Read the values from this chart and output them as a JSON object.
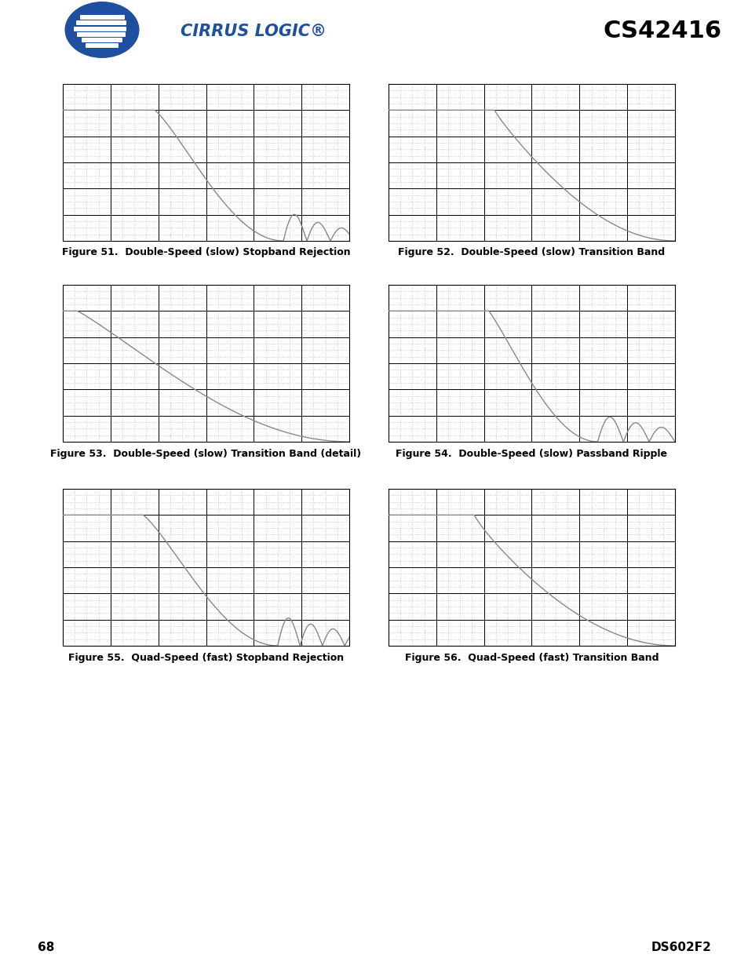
{
  "page_bg": "#ffffff",
  "header_bar_color": "#6e6e6e",
  "bottom_bar_color": "#999999",
  "page_num": "68",
  "doc_num": "DS602F2",
  "fig_captions": [
    "Figure 51.  Double-Speed (slow) Stopband Rejection",
    "Figure 52.  Double-Speed (slow) Transition Band",
    "Figure 53.  Double-Speed (slow) Transition Band (detail)",
    "Figure 54.  Double-Speed (slow) Passband Ripple",
    "Figure 55.  Quad-Speed (fast) Stopband Rejection",
    "Figure 56.  Quad-Speed (fast) Transition Band"
  ],
  "curve_color": "#888888",
  "num_major_cols": 6,
  "num_major_rows": 6,
  "num_minor": 4,
  "logo_blue": "#1e4fa0",
  "logo_text": "CIRRUS LOGIC",
  "product": "CS42416",
  "caption_fontsize": 9.0,
  "header_fontsize": 22,
  "logo_fontsize": 15
}
